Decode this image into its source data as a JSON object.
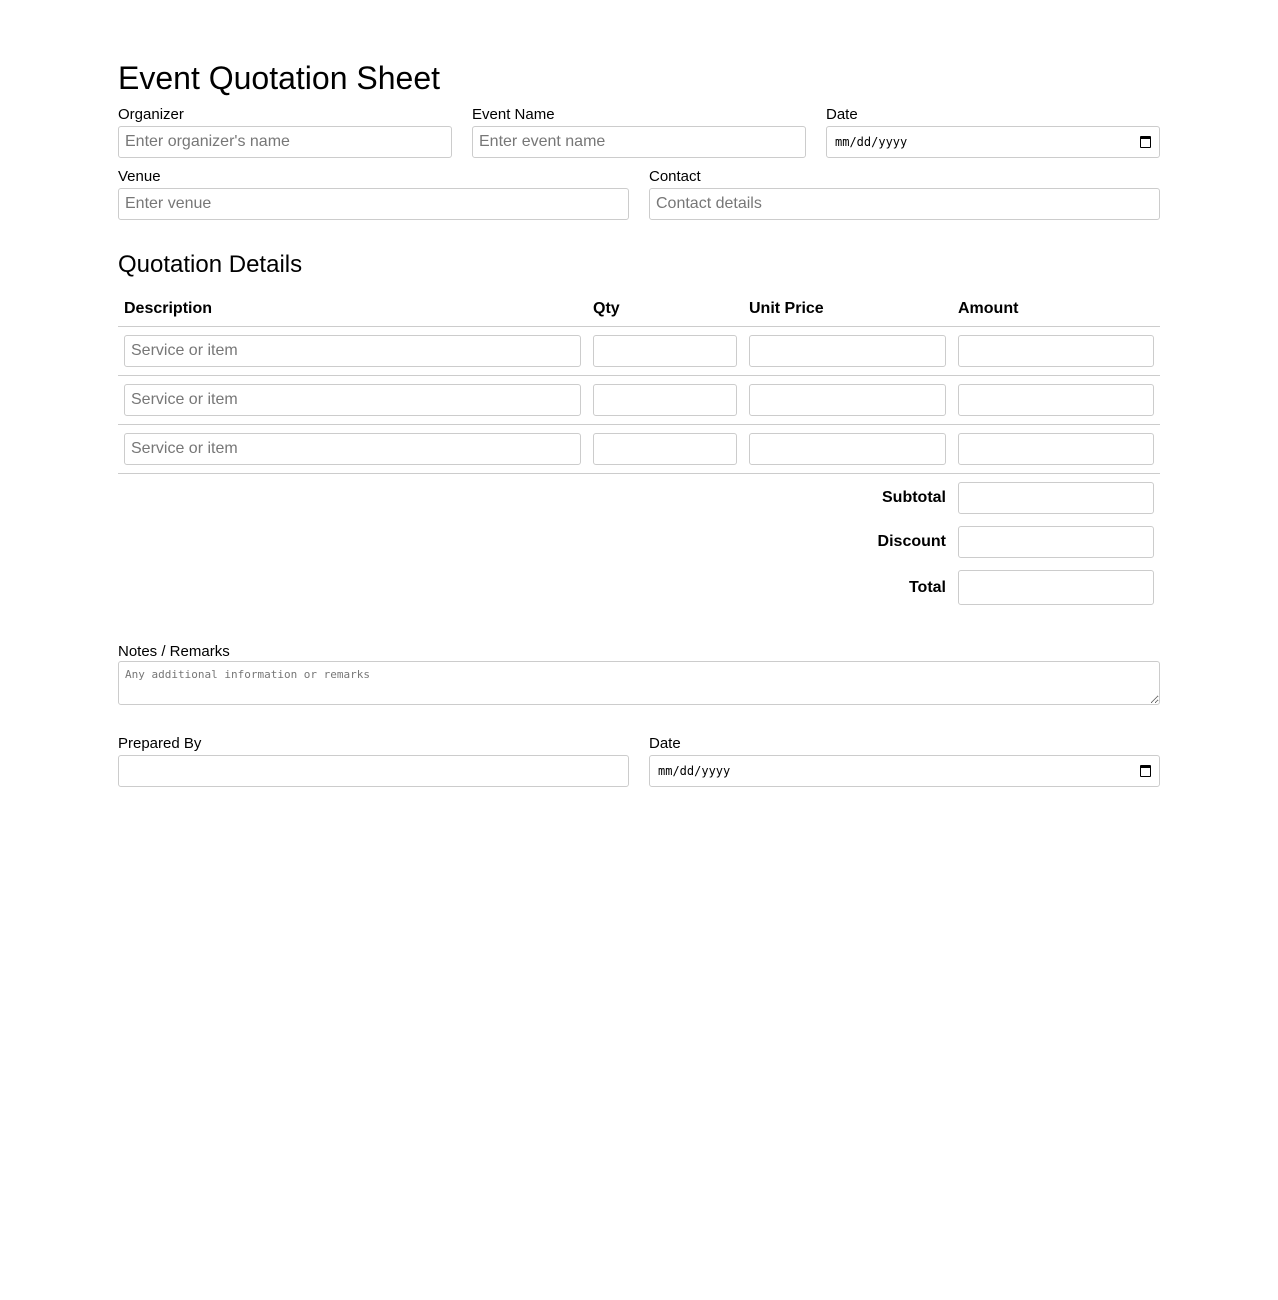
{
  "title": "Event Quotation Sheet",
  "header_fields": {
    "organizer": {
      "label": "Organizer",
      "placeholder": "Enter organizer's name"
    },
    "event_name": {
      "label": "Event Name",
      "placeholder": "Enter event name"
    },
    "date": {
      "label": "Date",
      "value": "mm/dd/yyyy"
    },
    "venue": {
      "label": "Venue",
      "placeholder": "Enter venue"
    },
    "contact": {
      "label": "Contact",
      "placeholder": "Contact details"
    }
  },
  "quotation": {
    "title": "Quotation Details",
    "columns": [
      "Description",
      "Qty",
      "Unit Price",
      "Amount"
    ],
    "rows": [
      {
        "placeholder": "Service or item"
      },
      {
        "placeholder": "Service or item"
      },
      {
        "placeholder": "Service or item"
      }
    ],
    "subtotal_label": "Subtotal",
    "discount_label": "Discount",
    "total_label": "Total"
  },
  "notes": {
    "label": "Notes / Remarks",
    "placeholder": "Any additional information or remarks"
  },
  "footer": {
    "prepared_by_label": "Prepared By",
    "date_label": "Date",
    "date_value": "mm/dd/yyyy"
  }
}
